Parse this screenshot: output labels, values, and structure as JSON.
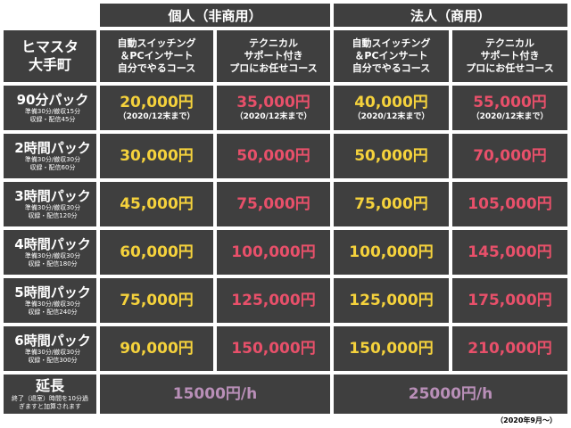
{
  "header": {
    "personal": "個人（非商用）",
    "corporate": "法人（商用）"
  },
  "corner": {
    "line1": "ヒマスタ",
    "line2": "大手町"
  },
  "columns": [
    {
      "line1": "自動スイッチング",
      "line2": "＆PCインサート",
      "line3": "自分でやるコース"
    },
    {
      "line1": "テクニカル",
      "line2": "サポート付き",
      "line3": "プロにお任せコース"
    },
    {
      "line1": "自動スイッチング",
      "line2": "＆PCインサート",
      "line3": "自分でやるコース"
    },
    {
      "line1": "テクニカル",
      "line2": "サポート付き",
      "line3": "プロにお任せコース"
    }
  ],
  "rows": [
    {
      "name": "90分パック",
      "sub1": "準備30分/撤収15分",
      "sub2": "収録・配信45分",
      "prices": [
        "20,000円",
        "35,000円",
        "40,000円",
        "55,000円"
      ],
      "notes": [
        "（2020/12末まで）",
        "（2020/12末まで）",
        "（2020/12末まで）",
        "（2020/12末まで）"
      ]
    },
    {
      "name": "2時間パック",
      "sub1": "準備30分/撤収30分",
      "sub2": "収録・配信60分",
      "prices": [
        "30,000円",
        "50,000円",
        "50,000円",
        "70,000円"
      ]
    },
    {
      "name": "3時間パック",
      "sub1": "準備30分/撤収30分",
      "sub2": "収録・配信120分",
      "prices": [
        "45,000円",
        "75,000円",
        "75,000円",
        "105,000円"
      ]
    },
    {
      "name": "4時間パック",
      "sub1": "準備30分/撤収30分",
      "sub2": "収録・配信180分",
      "prices": [
        "60,000円",
        "100,000円",
        "100,000円",
        "145,000円"
      ]
    },
    {
      "name": "5時間パック",
      "sub1": "準備30分/撤収30分",
      "sub2": "収録・配信240分",
      "prices": [
        "75,000円",
        "125,000円",
        "125,000円",
        "175,000円"
      ]
    },
    {
      "name": "6時間パック",
      "sub1": "準備30分/撤収30分",
      "sub2": "収録・配信300分",
      "prices": [
        "90,000円",
        "150,000円",
        "150,000円",
        "210,000円"
      ]
    }
  ],
  "extension": {
    "name": "延長",
    "sub1": "終了（退室）時間を10分過",
    "sub2": "ぎますと加算されます",
    "personal_price": "15000円/h",
    "corporate_price": "25000円/h"
  },
  "footer": "（2020年9月～）",
  "colors": {
    "cell_bg": "#3f3f3f",
    "personal_self": "#f5d23c",
    "pro_support": "#e8506a",
    "extension": "#b98fb8"
  }
}
